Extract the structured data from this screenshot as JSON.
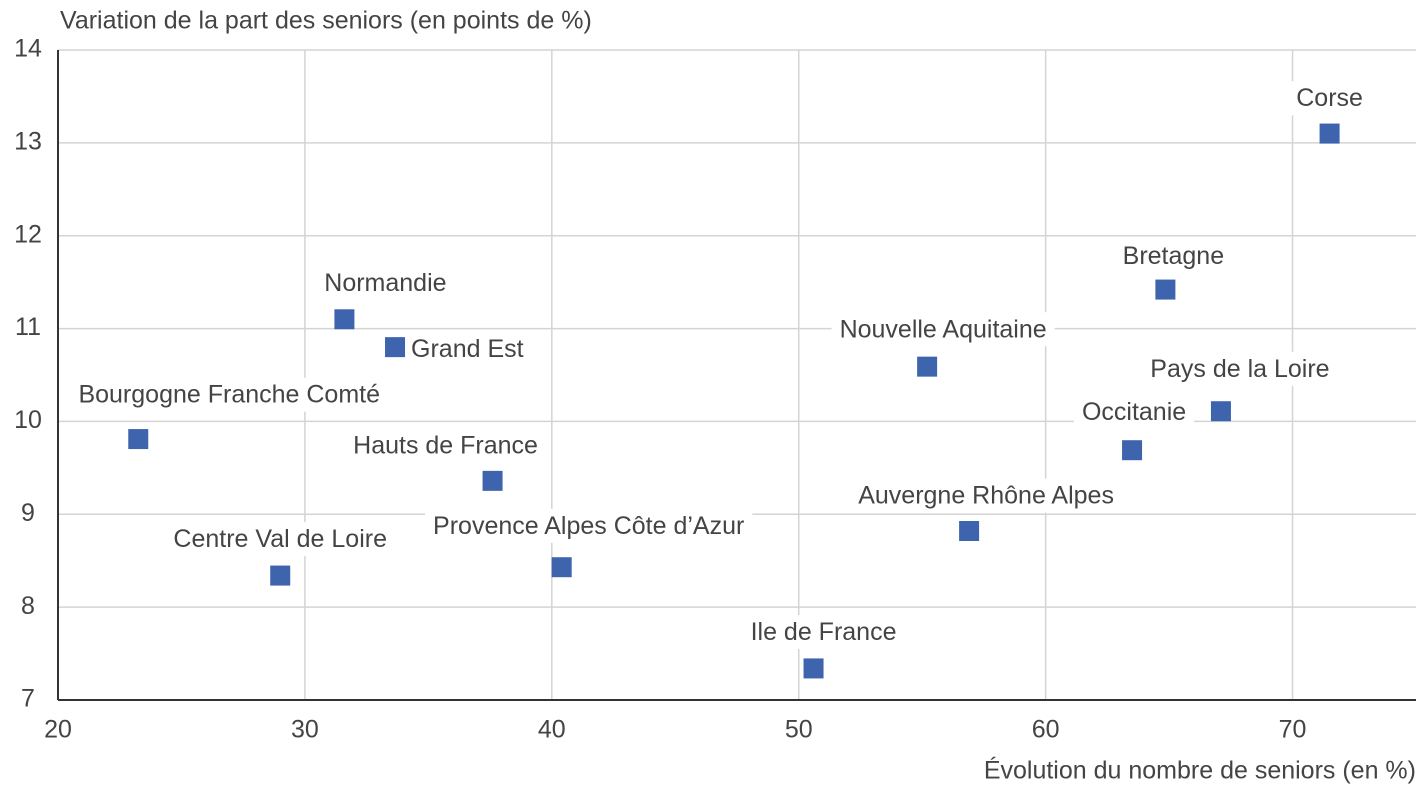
{
  "chart_data": {
    "type": "scatter",
    "y_label": "Variation de la part des seniors (en points de %)",
    "x_label": "Évolution du nombre de seniors (en %)",
    "labels": [
      "Corse",
      "Bretagne",
      "Nouvelle Aquitaine",
      "Pays de la Loire",
      "Occitanie",
      "Auvergne Rhône Alpes",
      "Ile de France",
      "Normandie",
      "Grand Est",
      "Bourgogne Franche Comté",
      "Hauts de France",
      "Centre Val de Loire",
      "Provence Alpes Côte d’Azur"
    ],
    "x": [
      71.5,
      64.85,
      55.2,
      67.1,
      63.5,
      56.9,
      50.6,
      31.6,
      33.65,
      23.25,
      37.6,
      29.0,
      40.4
    ],
    "values": [
      13.1,
      11.42,
      10.59,
      10.11,
      9.69,
      8.82,
      7.34,
      11.1,
      10.8,
      9.81,
      9.36,
      8.34,
      8.43
    ],
    "color": "#3e64ad",
    "xlim": [
      20,
      75
    ],
    "xticks": [
      20,
      30,
      40,
      50,
      60,
      70
    ],
    "ylim": [
      7,
      14
    ],
    "yticks": [
      7,
      8,
      9,
      10,
      11,
      12,
      13,
      14
    ],
    "grid": true
  }
}
